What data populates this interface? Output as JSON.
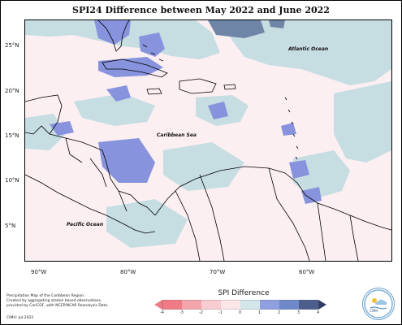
{
  "title": "SPI24 Difference between May 2022 and June 2022",
  "axes": {
    "y_ticks": [
      "25°N",
      "20°N",
      "15°N",
      "10°N",
      "5°N"
    ],
    "x_ticks": [
      "90°W",
      "80°W",
      "70°W",
      "60°W"
    ]
  },
  "labels": {
    "atlantic": "Atlantic Ocean",
    "caribbean": "Caribbean Sea",
    "pacific": "Pacific Ocean"
  },
  "footnote": {
    "line1": "Precipitation Map of the Caribbean Region.",
    "line2": "Created by aggregating station based observations,",
    "line3": "provided by CariCOF, with NCEP/NCAR Reanalysis Data.",
    "credit": "CIMH: Jul-2022"
  },
  "legend": {
    "title": "SPI Difference",
    "ticks": [
      "-4",
      "-3",
      "-2",
      "-1",
      "0",
      "1",
      "2",
      "3",
      "4"
    ],
    "colors": [
      "#f07b84",
      "#f4a5ac",
      "#f8cdd2",
      "#fbe5e8",
      "#d3e6ea",
      "#8f9fe0",
      "#6f88c8",
      "#4c5e8c"
    ]
  },
  "logo": {
    "text": "CIMH"
  },
  "colors": {
    "background": "#fbeff1",
    "light_blue": "#c6dde2",
    "medium_blue": "#8793dd",
    "dark_blue": "#6f85a8"
  }
}
